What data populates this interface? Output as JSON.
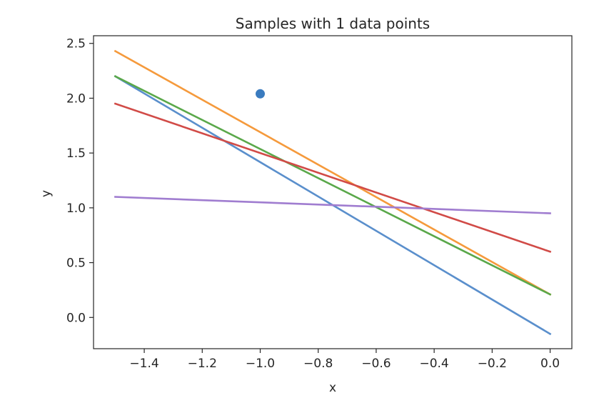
{
  "chart_data": {
    "type": "line",
    "title": "Samples with 1 data points",
    "xlabel": "x",
    "ylabel": "y",
    "xlim": [
      -1.575,
      0.075
    ],
    "ylim": [
      -0.285,
      2.57
    ],
    "xticks": [
      -1.4,
      -1.2,
      -1.0,
      -0.8,
      -0.6,
      -0.4,
      -0.2,
      0.0
    ],
    "xtick_labels": [
      "−1.4",
      "−1.2",
      "−1.0",
      "−0.8",
      "−0.6",
      "−0.4",
      "−0.2",
      "0.0"
    ],
    "yticks": [
      0.0,
      0.5,
      1.0,
      1.5,
      2.0,
      2.5
    ],
    "ytick_labels": [
      "0.0",
      "0.5",
      "1.0",
      "1.5",
      "2.0",
      "2.5"
    ],
    "grid": false,
    "legend": "none",
    "points": [
      {
        "x": -1.0,
        "y": 2.04,
        "color": "#3a7bbf"
      }
    ],
    "series": [
      {
        "color": "#5a8fcc",
        "x": [
          -1.5,
          0.0
        ],
        "y": [
          2.2,
          -0.15
        ]
      },
      {
        "color": "#f59a3c",
        "x": [
          -1.5,
          0.0
        ],
        "y": [
          2.43,
          0.21
        ]
      },
      {
        "color": "#5aa84a",
        "x": [
          -1.5,
          0.0
        ],
        "y": [
          2.2,
          0.21
        ]
      },
      {
        "color": "#d14b47",
        "x": [
          -1.5,
          0.0
        ],
        "y": [
          1.95,
          0.6
        ]
      },
      {
        "color": "#a07dd0",
        "x": [
          -1.5,
          0.0
        ],
        "y": [
          1.1,
          0.95
        ]
      }
    ]
  }
}
